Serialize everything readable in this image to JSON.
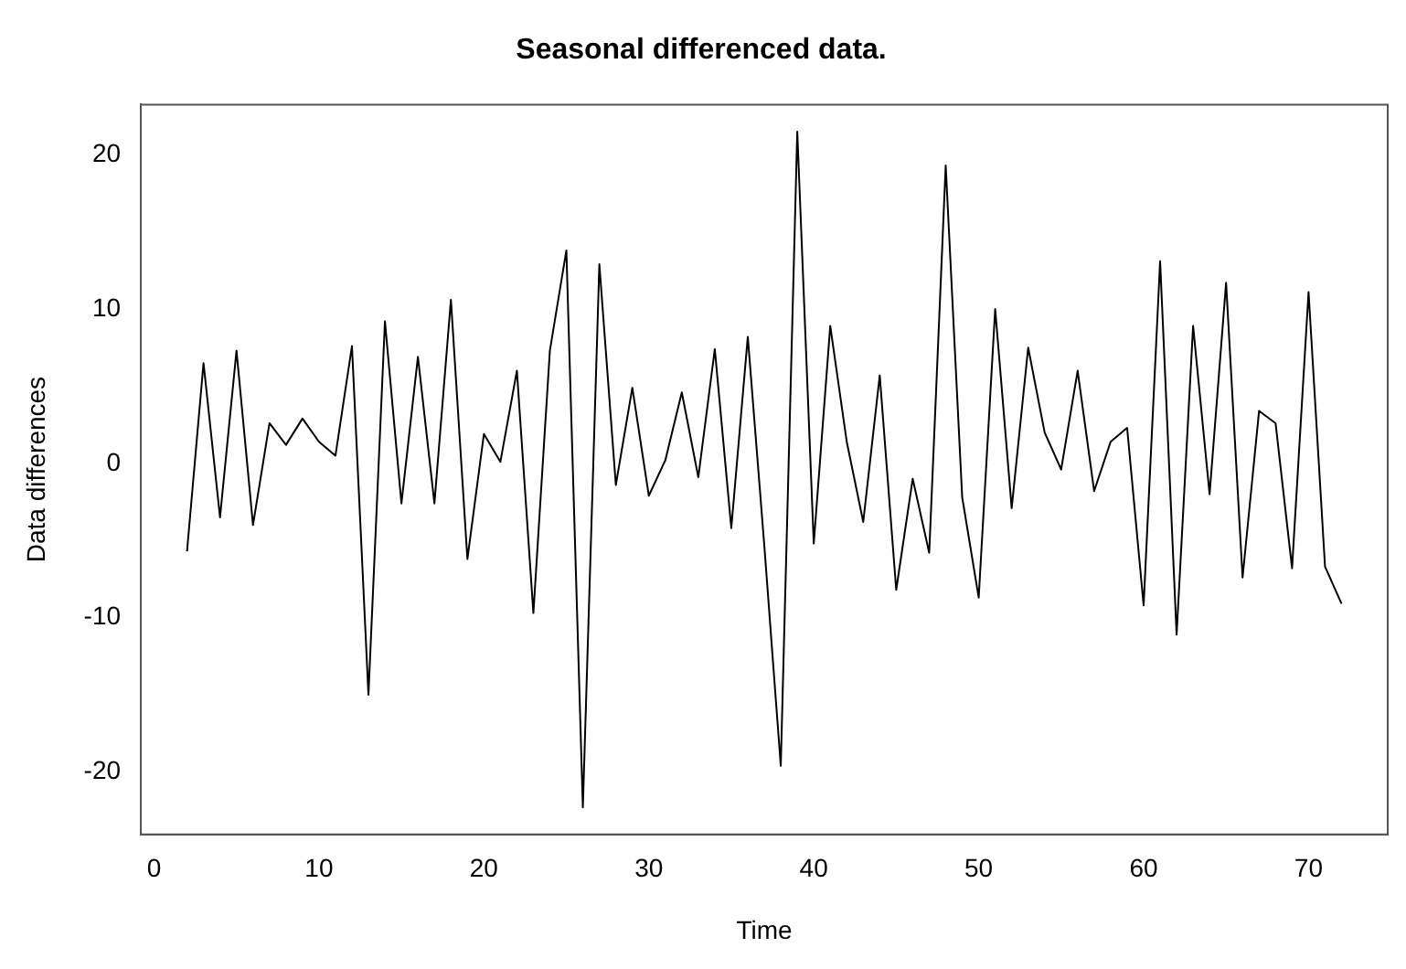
{
  "chart_data": {
    "type": "line",
    "title": "Seasonal differenced data.",
    "xlabel": "Time",
    "ylabel": "Data differences",
    "x": [
      2,
      3,
      4,
      5,
      6,
      7,
      8,
      9,
      10,
      11,
      12,
      13,
      14,
      15,
      16,
      17,
      18,
      19,
      20,
      21,
      22,
      23,
      24,
      25,
      26,
      27,
      28,
      29,
      30,
      31,
      32,
      33,
      34,
      35,
      36,
      37,
      38,
      39,
      40,
      41,
      42,
      43,
      44,
      45,
      46,
      47,
      48,
      49,
      50,
      51,
      52,
      53,
      54,
      55,
      56,
      57,
      58,
      59,
      60,
      61,
      62,
      63,
      64,
      65,
      66,
      67,
      68,
      69,
      70,
      71,
      72
    ],
    "series": [
      {
        "color": "#000000",
        "values": [
          -5.7,
          6.5,
          -3.5,
          7.3,
          -4.0,
          2.6,
          1.2,
          2.9,
          1.4,
          0.5,
          7.6,
          -15.0,
          9.2,
          -2.6,
          6.9,
          -2.6,
          10.6,
          -6.2,
          1.9,
          0.1,
          6.0,
          -9.7,
          7.3,
          13.8,
          -22.3,
          12.9,
          -1.4,
          4.9,
          -2.1,
          0.2,
          4.6,
          -0.9,
          7.4,
          -4.2,
          8.2,
          -5.3,
          -19.6,
          21.5,
          -5.2,
          8.9,
          1.4,
          -3.8,
          5.7,
          -8.2,
          -1.0,
          -5.8,
          19.3,
          -2.2,
          -8.7,
          10.0,
          -2.9,
          7.5,
          2.0,
          -0.4,
          6.0,
          -1.8,
          1.4,
          2.3,
          -9.2,
          13.1,
          -11.1,
          8.9,
          -2.0,
          11.7,
          -7.4,
          3.4,
          2.6,
          -6.8,
          11.1,
          -6.7,
          -9.1
        ]
      }
    ],
    "xlim": [
      -0.8,
      74.8
    ],
    "ylim": [
      -24.05,
      23.25
    ],
    "xticks": [
      0,
      10,
      20,
      30,
      40,
      50,
      60,
      70
    ],
    "yticks": [
      -20,
      -10,
      0,
      10,
      20
    ],
    "grid": false,
    "legend": false,
    "marker": "none",
    "line_style": "solid"
  }
}
